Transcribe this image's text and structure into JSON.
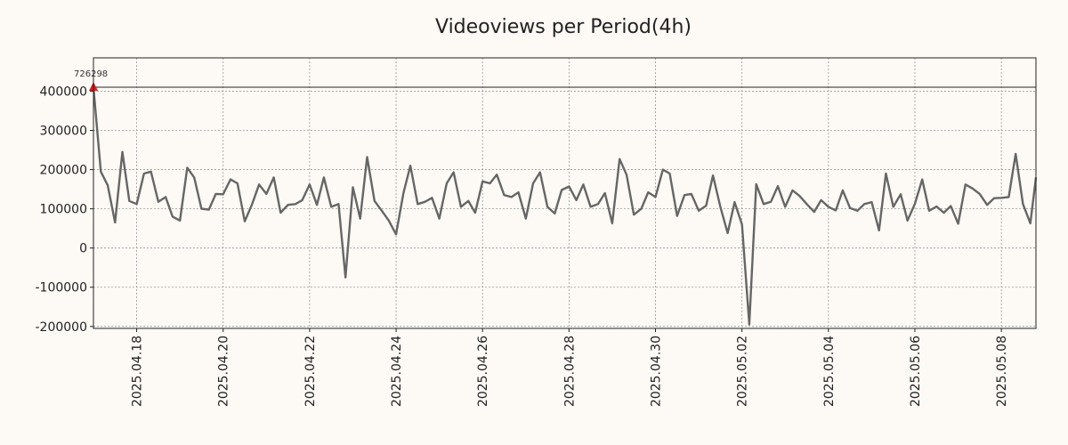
{
  "chart_data": {
    "type": "line",
    "title": "Videoviews per Period(4h)",
    "xlabel": "",
    "ylabel": "",
    "ylim": [
      -205000,
      485000
    ],
    "y_ticks": [
      -200000,
      -100000,
      0,
      100000,
      200000,
      300000,
      400000
    ],
    "y_tick_labels": [
      "-200000",
      "-100000",
      "0",
      "100000",
      "200000",
      "300000",
      "400000"
    ],
    "x_range_days": [
      0,
      21.8
    ],
    "x_ticks_days": [
      1,
      3,
      5,
      7,
      9,
      11,
      13,
      15,
      17,
      19,
      21
    ],
    "x_tick_labels": [
      "2025.04.18",
      "2025.04.20",
      "2025.04.22",
      "2025.04.24",
      "2025.04.26",
      "2025.04.28",
      "2025.04.30",
      "2025.05.02",
      "2025.05.04",
      "2025.05.06",
      "2025.05.08"
    ],
    "x_origin_date": "2025.04.17",
    "reference_line_y": 410000,
    "peak_label": "726298",
    "peak_value": 410000,
    "series": [
      {
        "name": "Videoviews",
        "color": "#666666",
        "x": [
          0,
          0.17,
          0.33,
          0.5,
          0.67,
          0.83,
          1,
          1.17,
          1.33,
          1.5,
          1.67,
          1.83,
          2,
          2.17,
          2.33,
          2.5,
          2.67,
          2.83,
          3,
          3.17,
          3.33,
          3.5,
          3.67,
          3.83,
          4,
          4.17,
          4.33,
          4.5,
          4.67,
          4.83,
          5,
          5.17,
          5.33,
          5.5,
          5.67,
          5.83,
          6,
          6.17,
          6.33,
          6.5,
          6.67,
          6.83,
          7,
          7.17,
          7.33,
          7.5,
          7.67,
          7.83,
          8,
          8.17,
          8.33,
          8.5,
          8.67,
          8.83,
          9,
          9.17,
          9.33,
          9.5,
          9.67,
          9.83,
          10,
          10.17,
          10.33,
          10.5,
          10.67,
          10.83,
          11,
          11.17,
          11.33,
          11.5,
          11.67,
          11.83,
          12,
          12.17,
          12.33,
          12.5,
          12.67,
          12.83,
          13,
          13.17,
          13.33,
          13.5,
          13.67,
          13.83,
          14,
          14.17,
          14.33,
          14.5,
          14.67,
          14.83,
          15,
          15.17,
          15.33,
          15.5,
          15.67,
          15.83,
          16,
          16.17,
          16.33,
          16.5,
          16.67,
          16.83,
          17,
          17.17,
          17.33,
          17.5,
          17.67,
          17.83,
          18,
          18.17,
          18.33,
          18.5,
          18.67,
          18.83,
          19,
          19.17,
          19.33,
          19.5,
          19.67,
          19.83,
          20,
          20.17,
          20.33,
          20.5,
          20.67,
          20.83,
          21,
          21.17,
          21.33,
          21.5,
          21.67,
          21.8
        ],
        "values": [
          410000,
          195000,
          160000,
          65000,
          245000,
          120000,
          112000,
          190000,
          195000,
          118000,
          130000,
          80000,
          70000,
          205000,
          180000,
          100000,
          98000,
          138000,
          137000,
          175000,
          165000,
          68000,
          112000,
          162000,
          138000,
          180000,
          90000,
          110000,
          112000,
          122000,
          162000,
          110000,
          180000,
          105000,
          112000,
          -75000,
          155000,
          75000,
          232000,
          120000,
          95000,
          70000,
          35000,
          140000,
          210000,
          112000,
          118000,
          128000,
          75000,
          165000,
          193000,
          105000,
          120000,
          90000,
          170000,
          165000,
          187000,
          135000,
          130000,
          142000,
          75000,
          165000,
          193000,
          105000,
          88000,
          148000,
          157000,
          122000,
          162000,
          105000,
          112000,
          140000,
          63000,
          227000,
          187000,
          85000,
          100000,
          142000,
          130000,
          200000,
          190000,
          82000,
          135000,
          138000,
          95000,
          108000,
          185000,
          105000,
          38000,
          117000,
          60000,
          -195000,
          163000,
          112000,
          118000,
          158000,
          105000,
          147000,
          133000,
          112000,
          92000,
          122000,
          105000,
          96000,
          147000,
          102000,
          95000,
          112000,
          117000,
          45000,
          190000,
          105000,
          137000,
          70000,
          113000,
          175000,
          95000,
          106000,
          90000,
          107000,
          62000,
          162000,
          152000,
          138000,
          110000,
          127000,
          128000,
          130000,
          240000,
          112000,
          63000,
          180000
        ]
      }
    ]
  }
}
